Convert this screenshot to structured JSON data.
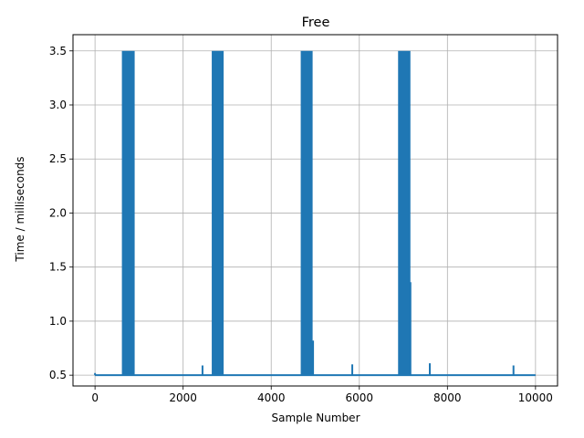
{
  "chart_data": {
    "type": "line",
    "title": "Free",
    "xlabel": "Sample Number",
    "ylabel": "Time / milliseconds",
    "xlim": [
      -500,
      10500
    ],
    "ylim": [
      0.4,
      3.65
    ],
    "xticks": [
      0,
      2000,
      4000,
      6000,
      8000,
      10000
    ],
    "xtick_labels": [
      "0",
      "2000",
      "4000",
      "6000",
      "8000",
      "10000"
    ],
    "yticks": [
      0.5,
      1.0,
      1.5,
      2.0,
      2.5,
      3.0,
      3.5
    ],
    "ytick_labels": [
      "0.5",
      "1.0",
      "1.5",
      "2.0",
      "2.5",
      "3.0",
      "3.5"
    ],
    "grid": true,
    "line_color": "#1f77b4",
    "baseline": 0.5,
    "high_value": 3.5,
    "bursts": [
      {
        "x_start": 610,
        "x_end": 900
      },
      {
        "x_start": 2650,
        "x_end": 2920
      },
      {
        "x_start": 4670,
        "x_end": 4940
      },
      {
        "x_start": 6880,
        "x_end": 7160
      }
    ],
    "spikes": [
      {
        "x": 2440,
        "y": 0.59
      },
      {
        "x": 5840,
        "y": 0.6
      },
      {
        "x": 7600,
        "y": 0.61
      },
      {
        "x": 9500,
        "y": 0.59
      },
      {
        "x": 7160,
        "y": 1.36
      },
      {
        "x": 4950,
        "y": 0.82
      }
    ]
  }
}
